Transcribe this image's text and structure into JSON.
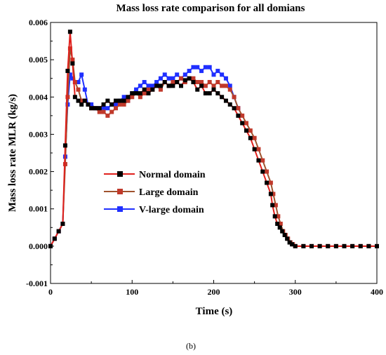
{
  "chart_data": {
    "type": "line",
    "title": "Mass loss rate comparison for all domians",
    "xlabel": "Time (s)",
    "ylabel": "Mass loss rate MLR (kg/s)",
    "xlim": [
      0,
      400
    ],
    "ylim": [
      -0.001,
      0.006
    ],
    "xticks": [
      "0",
      "100",
      "200",
      "300",
      "400"
    ],
    "yticks": [
      "-0.001",
      "0.000",
      "0.001",
      "0.002",
      "0.003",
      "0.004",
      "0.005",
      "0.006"
    ],
    "grid": false,
    "legend_position": "center-left",
    "caption": "(b)",
    "series": [
      {
        "name": "Normal domain",
        "color": "#000000",
        "line_color": "#e0201c",
        "x": [
          0,
          5,
          10,
          15,
          18,
          21,
          24,
          27,
          30,
          34,
          38,
          42,
          46,
          50,
          55,
          60,
          65,
          70,
          75,
          80,
          85,
          90,
          95,
          100,
          105,
          110,
          115,
          120,
          125,
          130,
          135,
          140,
          145,
          150,
          155,
          160,
          165,
          170,
          175,
          180,
          185,
          190,
          195,
          200,
          205,
          210,
          215,
          220,
          225,
          230,
          235,
          240,
          245,
          250,
          255,
          260,
          265,
          270,
          272,
          275,
          278,
          281,
          284,
          287,
          290,
          293,
          296,
          300,
          310,
          320,
          330,
          340,
          350,
          360,
          370,
          380,
          390,
          400
        ],
        "y": [
          0,
          0.0002,
          0.0004,
          0.0006,
          0.0027,
          0.0047,
          0.00575,
          0.0049,
          0.004,
          0.0039,
          0.0038,
          0.0039,
          0.0038,
          0.0037,
          0.0037,
          0.0037,
          0.0038,
          0.0039,
          0.0038,
          0.0039,
          0.0039,
          0.0039,
          0.004,
          0.0041,
          0.0041,
          0.0041,
          0.0042,
          0.0041,
          0.0042,
          0.0043,
          0.0043,
          0.0044,
          0.0043,
          0.0043,
          0.0044,
          0.0043,
          0.00445,
          0.0045,
          0.0044,
          0.0042,
          0.0043,
          0.0041,
          0.0041,
          0.0042,
          0.0041,
          0.004,
          0.0039,
          0.0038,
          0.0037,
          0.0035,
          0.0033,
          0.0031,
          0.0029,
          0.0026,
          0.0023,
          0.002,
          0.0017,
          0.0014,
          0.0011,
          0.0008,
          0.0006,
          0.0005,
          0.0004,
          0.0003,
          0.0002,
          0.0001,
          5e-05,
          0,
          0,
          0,
          0,
          0,
          0,
          0,
          0,
          0,
          0,
          0
        ]
      },
      {
        "name": "Large domain",
        "color": "#c0392b",
        "line_color": "#a0522d",
        "x": [
          0,
          5,
          10,
          15,
          18,
          21,
          24,
          27,
          30,
          34,
          38,
          42,
          46,
          50,
          55,
          60,
          65,
          70,
          75,
          80,
          85,
          90,
          95,
          100,
          105,
          110,
          115,
          120,
          125,
          130,
          135,
          140,
          145,
          150,
          155,
          160,
          165,
          170,
          175,
          180,
          185,
          190,
          195,
          200,
          205,
          210,
          215,
          220,
          225,
          230,
          235,
          240,
          245,
          250,
          255,
          260,
          265,
          270,
          273,
          276,
          279,
          282,
          285,
          288,
          291,
          294,
          297,
          300,
          310,
          320,
          330,
          340,
          350,
          360,
          370,
          380,
          390,
          400
        ],
        "y": [
          0,
          0.0002,
          0.0004,
          0.0006,
          0.0022,
          0.004,
          0.0053,
          0.005,
          0.0044,
          0.0042,
          0.0039,
          0.0039,
          0.0038,
          0.0037,
          0.0037,
          0.0036,
          0.0036,
          0.0035,
          0.0036,
          0.0037,
          0.0038,
          0.0038,
          0.0039,
          0.004,
          0.0041,
          0.004,
          0.0041,
          0.0042,
          0.0042,
          0.0043,
          0.0042,
          0.0044,
          0.0043,
          0.0044,
          0.0044,
          0.0045,
          0.0044,
          0.0045,
          0.0045,
          0.0044,
          0.0044,
          0.0043,
          0.0044,
          0.0043,
          0.0044,
          0.0043,
          0.0043,
          0.0042,
          0.004,
          0.0037,
          0.0035,
          0.0033,
          0.0031,
          0.0029,
          0.0026,
          0.0023,
          0.002,
          0.0017,
          0.0014,
          0.0011,
          0.0008,
          0.0006,
          0.0004,
          0.0003,
          0.0002,
          0.0001,
          5e-05,
          0,
          0,
          0,
          0,
          0,
          0,
          0,
          0,
          0,
          0,
          0
        ]
      },
      {
        "name": "V-large domain",
        "color": "#1f2fff",
        "line_color": "#1f2fff",
        "x": [
          0,
          5,
          10,
          15,
          18,
          21,
          24,
          27,
          30,
          34,
          38,
          42,
          46,
          50,
          55,
          60,
          65,
          70,
          75,
          80,
          85,
          90,
          95,
          100,
          105,
          110,
          115,
          120,
          125,
          130,
          135,
          140,
          145,
          150,
          155,
          160,
          165,
          170,
          175,
          180,
          185,
          190,
          195,
          200,
          205,
          210,
          215,
          220,
          225,
          230
        ],
        "y": [
          0,
          0.0002,
          0.0004,
          0.0006,
          0.0024,
          0.0038,
          0.0046,
          0.0045,
          0.0044,
          0.0044,
          0.0046,
          0.0042,
          0.0038,
          0.0038,
          0.0037,
          0.0037,
          0.0037,
          0.0037,
          0.0038,
          0.0038,
          0.0039,
          0.004,
          0.0039,
          0.0041,
          0.0042,
          0.0043,
          0.0044,
          0.0043,
          0.0043,
          0.0044,
          0.0045,
          0.0046,
          0.0045,
          0.0045,
          0.0046,
          0.0045,
          0.0046,
          0.0047,
          0.0048,
          0.0048,
          0.0047,
          0.0048,
          0.0048,
          0.0046,
          0.0047,
          0.0046,
          0.0045,
          0.0043,
          0.004,
          0.0037
        ]
      }
    ]
  }
}
